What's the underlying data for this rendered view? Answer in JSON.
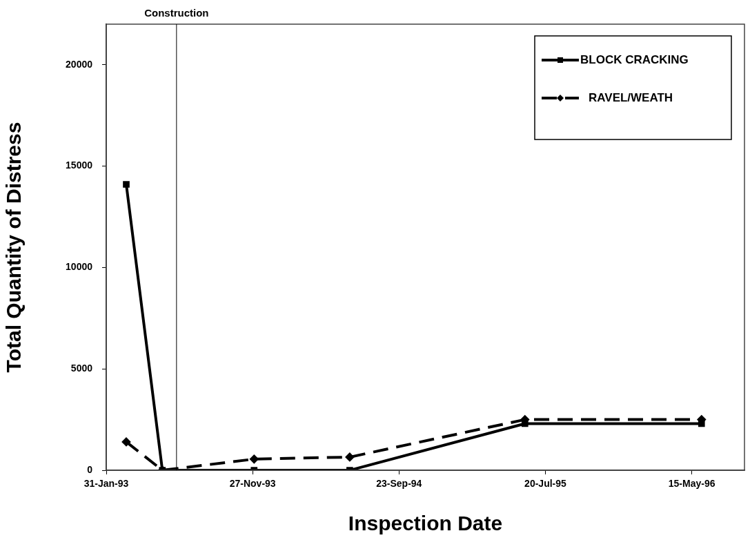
{
  "chart_data": {
    "type": "line",
    "xlabel": "Inspection Date",
    "ylabel": "Total Quantity of Distress",
    "xlim": [
      "1993-01-31",
      "1996-08-31"
    ],
    "xticks": [
      {
        "value": "1993-01-31",
        "label": "31-Jan-93"
      },
      {
        "value": "1993-11-27",
        "label": "27-Nov-93"
      },
      {
        "value": "1994-09-23",
        "label": "23-Sep-94"
      },
      {
        "value": "1995-07-20",
        "label": "20-Jul-95"
      },
      {
        "value": "1996-05-15",
        "label": "15-May-96"
      }
    ],
    "ylim": [
      0,
      22000
    ],
    "yticks": [
      0,
      5000,
      10000,
      15000,
      20000
    ],
    "x": [
      "1993-03-13",
      "1993-05-26",
      "1993-11-30",
      "1994-06-14",
      "1995-06-08",
      "1996-06-04"
    ],
    "series": [
      {
        "name": "BLOCK CRACKING",
        "color": "#000000",
        "marker": "square",
        "line_style": "solid",
        "values": [
          14100,
          0,
          0,
          0,
          2300,
          2300
        ]
      },
      {
        "name": "RAVEL/WEATH",
        "color": "#000000",
        "marker": "diamond",
        "line_style": "dashed",
        "values": [
          1400,
          0,
          550,
          650,
          2500,
          2500
        ]
      }
    ],
    "ref_lines": [
      {
        "axis": "x",
        "value": "1993-06-24",
        "label": "Construction",
        "color": "#000000"
      }
    ],
    "grid": false,
    "legend": "top right"
  }
}
